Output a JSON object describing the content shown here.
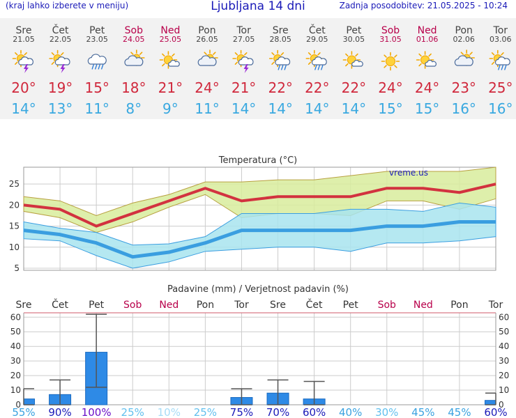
{
  "header": {
    "hint": "(kraj lahko izberete v meniju)",
    "title": "Ljubljana 14 dni",
    "updated": "Zadnja posodobitev: 21.05.2025 - 10:24"
  },
  "colors": {
    "weekday": "#444444",
    "weekend": "#b8004a",
    "max": "#d0283c",
    "min": "#38a8e0",
    "temp_line": "#d2323f",
    "max_band": "#d8ec9c",
    "min_band": "#a8e4ee",
    "min_line": "#3a9ee0",
    "bar": "#2e8ae6"
  },
  "days": [
    {
      "name": "Sre",
      "date": "21.05",
      "weekend": false,
      "icon": "partly-cloudy-thunder-icon",
      "max": "20°",
      "min": "14°"
    },
    {
      "name": "Čet",
      "date": "22.05",
      "weekend": false,
      "icon": "partly-cloudy-thunder-icon",
      "max": "19°",
      "min": "13°"
    },
    {
      "name": "Pet",
      "date": "23.05",
      "weekend": false,
      "icon": "rain-cloud-icon",
      "max": "15°",
      "min": "11°"
    },
    {
      "name": "Sob",
      "date": "24.05",
      "weekend": true,
      "icon": "cloudy-sun-icon",
      "max": "18°",
      "min": "8°"
    },
    {
      "name": "Ned",
      "date": "25.05",
      "weekend": true,
      "icon": "sun-small-cloud-icon",
      "max": "21°",
      "min": "9°"
    },
    {
      "name": "Pon",
      "date": "26.05",
      "weekend": false,
      "icon": "cloudy-sun-icon",
      "max": "24°",
      "min": "11°"
    },
    {
      "name": "Tor",
      "date": "27.05",
      "weekend": false,
      "icon": "partly-cloudy-thunder-icon",
      "max": "21°",
      "min": "14°"
    },
    {
      "name": "Sre",
      "date": "28.05",
      "weekend": false,
      "icon": "partly-cloudy-rain-icon",
      "max": "22°",
      "min": "14°"
    },
    {
      "name": "Čet",
      "date": "29.05",
      "weekend": false,
      "icon": "partly-cloudy-rain-icon",
      "max": "22°",
      "min": "14°"
    },
    {
      "name": "Pet",
      "date": "30.05",
      "weekend": false,
      "icon": "sun-small-cloud-icon",
      "max": "22°",
      "min": "14°"
    },
    {
      "name": "Sob",
      "date": "31.05",
      "weekend": true,
      "icon": "sun-icon",
      "max": "24°",
      "min": "15°"
    },
    {
      "name": "Ned",
      "date": "01.06",
      "weekend": true,
      "icon": "sun-small-cloud-icon",
      "max": "24°",
      "min": "15°"
    },
    {
      "name": "Pon",
      "date": "02.06",
      "weekend": false,
      "icon": "cloudy-sun-icon",
      "max": "23°",
      "min": "16°"
    },
    {
      "name": "Tor",
      "date": "03.06",
      "weekend": false,
      "icon": "partly-cloudy-rain-icon",
      "max": "25°",
      "min": "16°"
    }
  ],
  "chart_data": [
    {
      "type": "line",
      "title": "Temperatura (°C)",
      "watermark": "vreme.us",
      "x": [
        "Sre",
        "Čet",
        "Pet",
        "Sob",
        "Ned",
        "Pon",
        "Tor",
        "Sre",
        "Čet",
        "Pet",
        "Sob",
        "Ned",
        "Pon",
        "Tor"
      ],
      "ylim": [
        4.5,
        29
      ],
      "yticks": [
        5,
        10,
        15,
        20,
        25
      ],
      "series": [
        {
          "name": "max",
          "values": [
            20,
            19,
            15,
            18,
            21,
            24,
            21,
            22,
            22,
            22,
            24,
            24,
            23,
            25
          ]
        },
        {
          "name": "max_low",
          "values": [
            18.5,
            17,
            13.5,
            16,
            19.5,
            22.5,
            17,
            18,
            18,
            17.5,
            21,
            21,
            19,
            21.5
          ]
        },
        {
          "name": "max_high",
          "values": [
            22,
            21,
            17.5,
            20.5,
            22.5,
            25.5,
            25.5,
            26,
            26,
            27,
            28,
            28,
            28,
            29
          ]
        },
        {
          "name": "min",
          "values": [
            14,
            13,
            11,
            7.7,
            8.8,
            11,
            14,
            14,
            14,
            14,
            15,
            15,
            16,
            16
          ]
        },
        {
          "name": "min_low",
          "values": [
            12,
            11.5,
            8,
            5,
            6.5,
            9,
            9.5,
            10,
            10,
            9,
            11,
            11,
            11.5,
            12.5
          ]
        },
        {
          "name": "min_high",
          "values": [
            16,
            14.5,
            13.5,
            10.5,
            10.8,
            12.5,
            18,
            18,
            18,
            19,
            19,
            18.5,
            20.5,
            19.5
          ]
        }
      ]
    },
    {
      "type": "bar",
      "title": "Padavine (mm) / Verjetnost padavin (%)",
      "categories": [
        "Sre",
        "Čet",
        "Pet",
        "Sob",
        "Ned",
        "Pon",
        "Tor",
        "Sre",
        "Čet",
        "Pet",
        "Sob",
        "Ned",
        "Pon",
        "Tor"
      ],
      "values": [
        4,
        7,
        36,
        0,
        0,
        0,
        5,
        8,
        4,
        0,
        0,
        0,
        0,
        3
      ],
      "err_low": [
        0,
        0,
        12,
        null,
        null,
        null,
        0,
        0,
        0,
        null,
        null,
        null,
        null,
        0
      ],
      "err_high": [
        11,
        17,
        62,
        null,
        null,
        null,
        11,
        17,
        16,
        null,
        null,
        null,
        null,
        8
      ],
      "ylim": [
        0,
        63
      ],
      "yticks": [
        0,
        10,
        20,
        30,
        40,
        50,
        60
      ],
      "probability": [
        "55%",
        "90%",
        "100%",
        "25%",
        "10%",
        "25%",
        "75%",
        "70%",
        "60%",
        "40%",
        "30%",
        "45%",
        "45%",
        "60%"
      ],
      "probability_colors": [
        "#3aa2e0",
        "#1a1ab8",
        "#6a10c8",
        "#62c0ee",
        "#a6dcf6",
        "#62c0ee",
        "#1a1ab8",
        "#1a1ab8",
        "#1a1ab8",
        "#3aa2e0",
        "#62c0ee",
        "#3aa2e0",
        "#3aa2e0",
        "#1a1ab8"
      ]
    }
  ]
}
